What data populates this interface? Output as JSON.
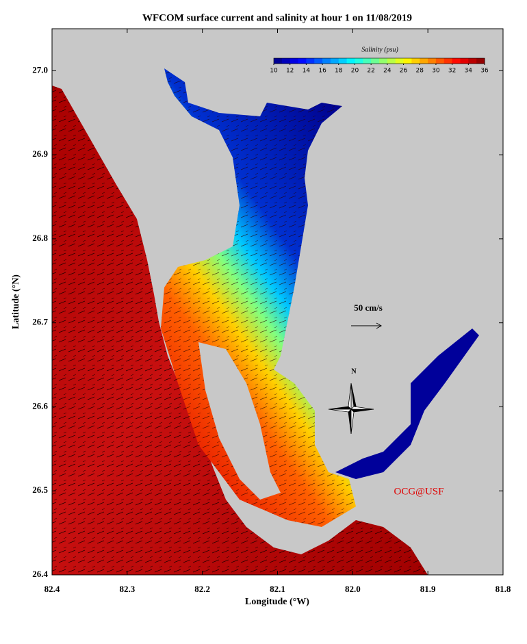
{
  "title": "WFCOM surface current and salinity at hour 1 on 11/08/2019",
  "x_axis": {
    "label": "Longitude (°W)",
    "lim": [
      82.4,
      81.8
    ],
    "ticks": [
      82.4,
      82.3,
      82.2,
      82.1,
      {
        "value": 82.0,
        "label": "82.0"
      },
      81.9,
      81.8
    ]
  },
  "y_axis": {
    "label": "Latitude (°N)",
    "lim": [
      26.4,
      27.05
    ],
    "ticks": [
      26.4,
      26.5,
      26.6,
      26.7,
      26.8,
      26.9,
      {
        "value": 27.0,
        "label": "27.0"
      }
    ]
  },
  "colorbar": {
    "title": "Salinity (psu)",
    "colormap": "jet",
    "lim": [
      10,
      36
    ],
    "ticks": [
      10,
      12,
      14,
      16,
      18,
      20,
      22,
      24,
      26,
      28,
      30,
      32,
      34,
      36
    ]
  },
  "scale_arrow": {
    "label": "50 cm/s"
  },
  "compass": {
    "label": "N"
  },
  "credit": "OCG@USF"
}
